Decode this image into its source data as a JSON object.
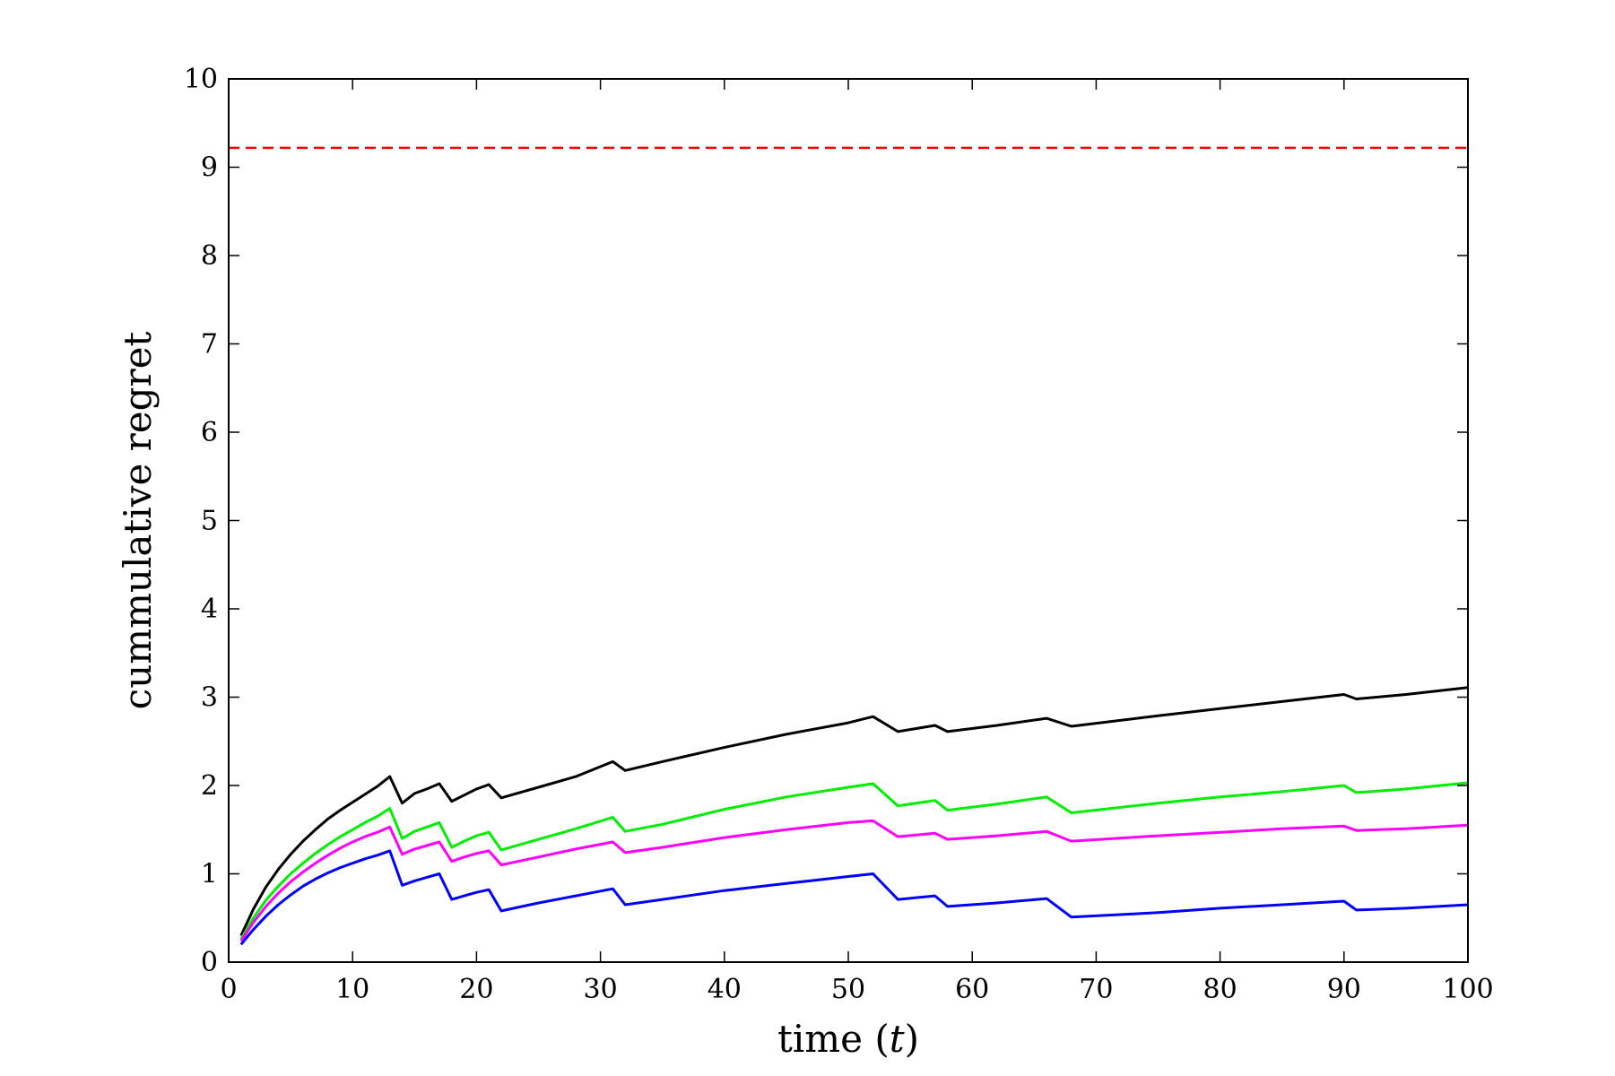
{
  "chart_data": {
    "type": "line",
    "title": "",
    "xlabel": "time (",
    "xlabel_var": "t",
    "xlabel_close": ")",
    "ylabel": "cummulative regret",
    "xlim": [
      0,
      100
    ],
    "ylim": [
      0,
      10
    ],
    "xticks": [
      0,
      10,
      20,
      30,
      40,
      50,
      60,
      70,
      80,
      90,
      100
    ],
    "yticks": [
      0,
      1,
      2,
      3,
      4,
      5,
      6,
      7,
      8,
      9,
      10
    ],
    "grid": false,
    "legend": "none",
    "reference_line": {
      "y": 9.22,
      "color": "#ff0000",
      "style": "dashed"
    },
    "series": [
      {
        "color": "#000000",
        "x": [
          1,
          2,
          3,
          4,
          5,
          6,
          7,
          8,
          9,
          10,
          11,
          12,
          13,
          14,
          15,
          16,
          17,
          18,
          19,
          20,
          21,
          22,
          25,
          28,
          31,
          32,
          35,
          40,
          45,
          50,
          52,
          54,
          57,
          58,
          62,
          66,
          68,
          75,
          80,
          85,
          90,
          91,
          95,
          100
        ],
        "y": [
          0.3,
          0.6,
          0.85,
          1.05,
          1.22,
          1.37,
          1.5,
          1.62,
          1.72,
          1.81,
          1.9,
          1.99,
          2.1,
          1.8,
          1.91,
          1.96,
          2.02,
          1.82,
          1.89,
          1.96,
          2.01,
          1.86,
          1.98,
          2.1,
          2.27,
          2.17,
          2.27,
          2.43,
          2.58,
          2.71,
          2.78,
          2.61,
          2.68,
          2.61,
          2.68,
          2.76,
          2.67,
          2.79,
          2.87,
          2.95,
          3.03,
          2.98,
          3.03,
          3.11
        ]
      },
      {
        "color": "#00ee00",
        "x": [
          1,
          2,
          3,
          4,
          5,
          6,
          7,
          8,
          9,
          10,
          11,
          12,
          13,
          14,
          15,
          16,
          17,
          18,
          19,
          20,
          21,
          22,
          25,
          28,
          31,
          32,
          35,
          40,
          45,
          50,
          52,
          54,
          57,
          58,
          62,
          66,
          68,
          75,
          80,
          85,
          90,
          91,
          95,
          100
        ],
        "y": [
          0.26,
          0.5,
          0.7,
          0.86,
          1.0,
          1.12,
          1.23,
          1.33,
          1.42,
          1.5,
          1.58,
          1.65,
          1.74,
          1.4,
          1.48,
          1.53,
          1.58,
          1.3,
          1.37,
          1.43,
          1.47,
          1.27,
          1.39,
          1.51,
          1.64,
          1.48,
          1.56,
          1.73,
          1.87,
          1.98,
          2.02,
          1.77,
          1.83,
          1.72,
          1.79,
          1.87,
          1.69,
          1.8,
          1.87,
          1.93,
          2.0,
          1.92,
          1.96,
          2.03
        ]
      },
      {
        "color": "#ff00ff",
        "x": [
          1,
          2,
          3,
          4,
          5,
          6,
          7,
          8,
          9,
          10,
          11,
          12,
          13,
          14,
          15,
          16,
          17,
          18,
          19,
          20,
          21,
          22,
          25,
          28,
          31,
          32,
          35,
          40,
          45,
          50,
          52,
          54,
          57,
          58,
          62,
          66,
          68,
          75,
          80,
          85,
          90,
          91,
          95,
          100
        ],
        "y": [
          0.24,
          0.45,
          0.63,
          0.78,
          0.91,
          1.02,
          1.12,
          1.21,
          1.29,
          1.36,
          1.42,
          1.47,
          1.53,
          1.22,
          1.28,
          1.32,
          1.36,
          1.14,
          1.19,
          1.23,
          1.26,
          1.1,
          1.19,
          1.28,
          1.36,
          1.24,
          1.3,
          1.41,
          1.5,
          1.58,
          1.6,
          1.42,
          1.46,
          1.39,
          1.43,
          1.48,
          1.37,
          1.43,
          1.47,
          1.51,
          1.54,
          1.49,
          1.51,
          1.55
        ]
      },
      {
        "color": "#0000ff",
        "x": [
          1,
          2,
          3,
          4,
          5,
          6,
          7,
          8,
          9,
          10,
          11,
          12,
          13,
          14,
          15,
          16,
          17,
          18,
          19,
          20,
          21,
          22,
          25,
          28,
          31,
          32,
          35,
          40,
          45,
          50,
          52,
          54,
          57,
          58,
          62,
          66,
          68,
          75,
          80,
          85,
          90,
          91,
          95,
          100
        ],
        "y": [
          0.2,
          0.37,
          0.52,
          0.65,
          0.76,
          0.86,
          0.94,
          1.01,
          1.07,
          1.12,
          1.17,
          1.21,
          1.26,
          0.87,
          0.92,
          0.96,
          1.0,
          0.71,
          0.75,
          0.79,
          0.82,
          0.58,
          0.67,
          0.75,
          0.83,
          0.65,
          0.71,
          0.81,
          0.89,
          0.97,
          1.0,
          0.71,
          0.75,
          0.63,
          0.67,
          0.72,
          0.51,
          0.56,
          0.61,
          0.65,
          0.69,
          0.59,
          0.61,
          0.65
        ]
      }
    ]
  }
}
